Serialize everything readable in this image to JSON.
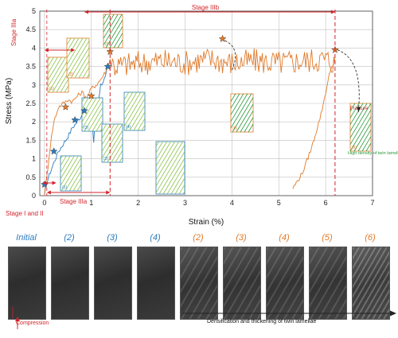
{
  "chart_data": {
    "type": "line",
    "xlabel": "Strain (%)",
    "ylabel": "Stress (MPa)",
    "xlim": [
      -0.1,
      7
    ],
    "ylim": [
      0,
      5
    ],
    "xticks": [
      "0",
      "1",
      "2",
      "3",
      "4",
      "5",
      "6",
      "7"
    ],
    "yticks": [
      "0",
      "0.5",
      "1",
      "1.5",
      "2",
      "2.5",
      "3",
      "3.5",
      "4",
      "4.5",
      "5"
    ],
    "grid": true,
    "series": [
      {
        "color": "#2b7bbd",
        "x": [
          0,
          0.05,
          0.1,
          0.2,
          0.3,
          0.4,
          0.5,
          0.6,
          0.7,
          0.8,
          0.9,
          1.0,
          1.05,
          1.1,
          1.15,
          1.2,
          1.3,
          1.35
        ],
        "y": [
          0,
          0.35,
          0.55,
          0.9,
          1.2,
          1.4,
          1.6,
          1.85,
          2.0,
          2.2,
          2.35,
          2.3,
          1.45,
          2.4,
          2.6,
          3.0,
          3.2,
          3.5
        ]
      },
      {
        "color": "#e07a2a",
        "x": [
          0,
          0.05,
          0.1,
          0.15,
          0.2,
          0.3,
          0.4,
          0.5,
          0.6,
          0.7,
          0.8,
          0.9,
          1.0,
          1.1,
          1.2,
          1.3,
          1.4,
          1.5,
          2.0,
          2.5,
          3.0,
          3.5,
          4.0,
          4.5,
          5.0,
          5.5,
          6.0,
          6.2
        ],
        "y": [
          0,
          0.5,
          1.1,
          1.6,
          2.0,
          2.4,
          2.5,
          2.6,
          2.55,
          2.7,
          2.8,
          2.65,
          2.9,
          3.0,
          3.15,
          3.35,
          3.7,
          3.5,
          3.6,
          3.65,
          3.6,
          3.7,
          3.6,
          3.65,
          3.6,
          3.65,
          3.7,
          3.6
        ]
      },
      {
        "color": "#e07a2a",
        "x": [
          5.3,
          5.5,
          5.7,
          5.9,
          6.0,
          6.1,
          6.2
        ],
        "y": [
          0.2,
          0.6,
          1.3,
          2.2,
          2.8,
          3.4,
          3.7
        ]
      }
    ],
    "markers": [
      {
        "x": 0.0,
        "y": 0.3,
        "color": "#2b7bbd"
      },
      {
        "x": 0.2,
        "y": 1.2,
        "color": "#2b7bbd"
      },
      {
        "x": 0.65,
        "y": 2.05,
        "color": "#2b7bbd"
      },
      {
        "x": 0.85,
        "y": 2.3,
        "color": "#2b7bbd"
      },
      {
        "x": 1.35,
        "y": 3.5,
        "color": "#2b7bbd"
      },
      {
        "x": 0.45,
        "y": 2.4,
        "color": "#e07a2a"
      },
      {
        "x": 1.0,
        "y": 2.7,
        "color": "#e07a2a"
      },
      {
        "x": 1.4,
        "y": 3.9,
        "color": "#e07a2a"
      },
      {
        "x": 3.8,
        "y": 4.25,
        "color": "#e07a2a"
      },
      {
        "x": 6.2,
        "y": 3.95,
        "color": "#e07a2a"
      }
    ],
    "annotations": {
      "stage_IIIa_top": "Stage IIIa",
      "stage_IIIb": "Stage IIIb",
      "stage_IIIa_bottom": "Stage IIIa",
      "stage_I_II": "Stage I and II",
      "fracture": "Fracture",
      "twin_note": "High density of twin lamellae"
    },
    "inset_labels": [
      "(1)",
      "(2)",
      "(3)",
      "(4)",
      "(5)",
      "(6)"
    ]
  },
  "strip": {
    "thumbnails": [
      {
        "label": "Initial",
        "color": "blue"
      },
      {
        "label": "(2)",
        "color": "blue"
      },
      {
        "label": "(3)",
        "color": "blue"
      },
      {
        "label": "(4)",
        "color": "blue"
      },
      {
        "label": "(2)",
        "color": "orange"
      },
      {
        "label": "(3)",
        "color": "orange"
      },
      {
        "label": "(4)",
        "color": "orange"
      },
      {
        "label": "(5)",
        "color": "orange"
      },
      {
        "label": "(6)",
        "color": "orange"
      }
    ],
    "compression_label": "Compression",
    "densification_label": "Densification and thickening of twin lamellae"
  }
}
